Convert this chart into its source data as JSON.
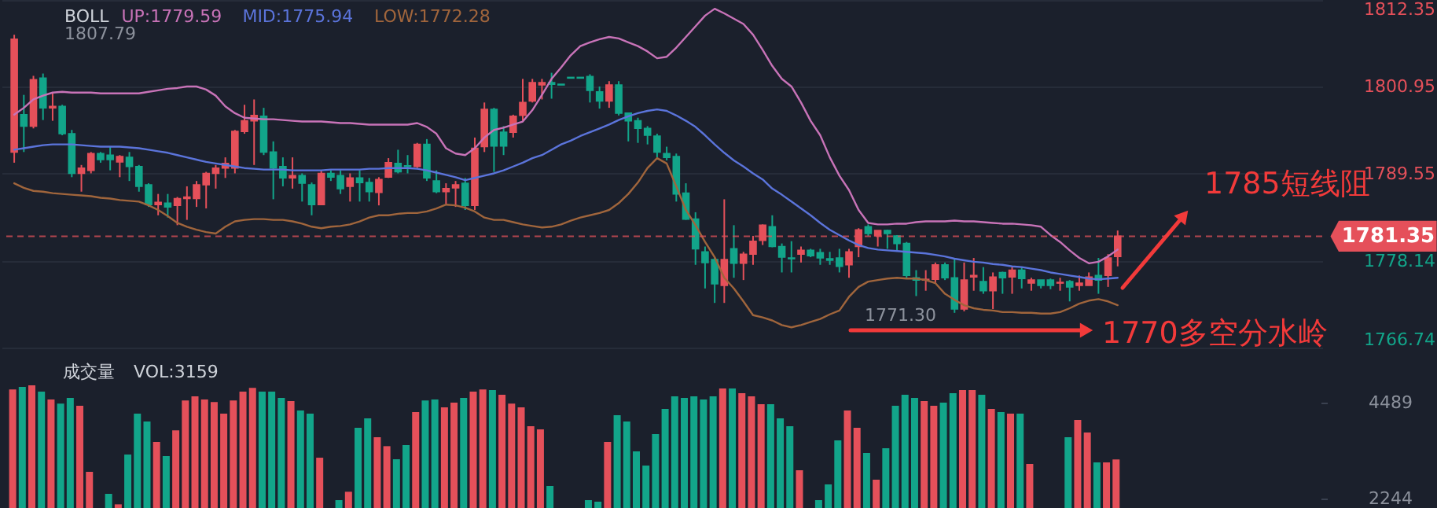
{
  "chart_data": [
    {
      "type": "candlestick",
      "title": "BOLL",
      "categories": [
        null,
        null,
        null,
        null,
        null,
        null,
        null,
        null,
        null,
        null,
        null,
        null,
        null,
        null,
        null,
        null,
        null,
        null,
        null,
        null,
        null,
        null,
        null,
        null,
        null,
        null,
        null,
        null,
        null,
        null,
        null,
        null,
        null,
        null,
        null,
        null,
        null,
        null,
        null,
        null,
        null,
        null,
        null,
        null,
        null,
        null,
        null,
        null,
        null,
        null,
        null,
        null,
        null,
        null,
        null,
        null,
        null,
        null,
        null,
        null,
        null,
        null,
        null,
        null,
        null,
        null,
        null,
        null,
        null,
        null,
        null,
        null,
        null,
        null,
        null,
        null,
        null,
        null,
        null,
        null,
        null,
        null,
        null,
        null,
        null,
        null,
        null,
        null,
        null,
        null,
        null,
        null,
        null,
        null,
        null,
        null,
        null,
        null,
        null,
        null,
        null,
        null,
        null,
        null,
        null,
        null,
        null,
        null,
        null,
        null,
        null,
        null,
        null,
        null,
        null,
        null,
        null,
        null,
        null,
        null,
        null,
        null,
        null,
        null,
        null,
        null,
        null,
        null,
        null,
        null,
        null,
        null,
        null,
        null,
        null,
        null
      ],
      "ohlc": [
        [
          1792.4,
          1807.79,
          1791.0,
          1807.2
        ],
        [
          1797.3,
          1799.9,
          1792.4,
          1795.8
        ],
        [
          1795.8,
          1802.4,
          1795.5,
          1801.9
        ],
        [
          1802.1,
          1802.7,
          1796.6,
          1798.2
        ],
        [
          1798.2,
          1800.1,
          1796.5,
          1798.4
        ],
        [
          1798.4,
          1798.6,
          1794.6,
          1794.8
        ],
        [
          1794.8,
          1795.3,
          1789.1,
          1789.6
        ],
        [
          1789.6,
          1790.7,
          1787.2,
          1790.3
        ],
        [
          1790.0,
          1792.4,
          1789.6,
          1792.2
        ],
        [
          1792.2,
          1792.4,
          1791.0,
          1791.4
        ],
        [
          1792.0,
          1793.1,
          1790.0,
          1791.4
        ],
        [
          1791.1,
          1792.0,
          1789.1,
          1791.8
        ],
        [
          1791.7,
          1792.4,
          1788.6,
          1790.5
        ],
        [
          1790.5,
          1790.7,
          1787.2,
          1787.9
        ],
        [
          1788.1,
          1788.3,
          1785.2,
          1785.5
        ],
        [
          1785.5,
          1786.9,
          1784.1,
          1785.8
        ],
        [
          1785.7,
          1786.9,
          1783.8,
          1785.2
        ],
        [
          1785.4,
          1786.5,
          1782.8,
          1786.3
        ],
        [
          1786.3,
          1787.9,
          1783.5,
          1786.5
        ],
        [
          1786.3,
          1788.6,
          1785.2,
          1788.1
        ],
        [
          1788.1,
          1789.8,
          1785.0,
          1789.6
        ],
        [
          1789.6,
          1790.7,
          1787.6,
          1790.3
        ],
        [
          1790.3,
          1791.7,
          1789.0,
          1790.9
        ],
        [
          1790.3,
          1795.3,
          1789.6,
          1795.1
        ],
        [
          1795.1,
          1798.6,
          1794.8,
          1796.5
        ],
        [
          1796.5,
          1799.3,
          1790.7,
          1797.2
        ],
        [
          1797.1,
          1798.2,
          1792.0,
          1792.4
        ],
        [
          1792.4,
          1793.8,
          1786.2,
          1790.3
        ],
        [
          1790.5,
          1791.7,
          1787.9,
          1789.0
        ],
        [
          1789.0,
          1791.7,
          1787.6,
          1789.3
        ],
        [
          1789.3,
          1789.6,
          1785.9,
          1788.3
        ],
        [
          1788.1,
          1788.4,
          1784.1,
          1785.5
        ],
        [
          1785.5,
          1790.0,
          1785.5,
          1789.6
        ],
        [
          1789.6,
          1790.0,
          1788.6,
          1789.1
        ],
        [
          1789.3,
          1790.0,
          1786.9,
          1787.6
        ],
        [
          1787.9,
          1789.6,
          1785.9,
          1789.0
        ],
        [
          1789.0,
          1790.0,
          1785.9,
          1788.4
        ],
        [
          1788.4,
          1789.0,
          1785.9,
          1787.2
        ],
        [
          1787.1,
          1789.1,
          1785.4,
          1788.8
        ],
        [
          1789.1,
          1791.6,
          1789.0,
          1791.0
        ],
        [
          1790.9,
          1792.7,
          1789.6,
          1789.8
        ],
        [
          1790.6,
          1792.0,
          1789.6,
          1790.5
        ],
        [
          1790.5,
          1793.6,
          1790.3,
          1793.4
        ],
        [
          1793.4,
          1794.1,
          1788.6,
          1789.0
        ],
        [
          1788.6,
          1790.0,
          1787.0,
          1787.2
        ],
        [
          1787.2,
          1788.3,
          1785.6,
          1787.6
        ],
        [
          1787.7,
          1788.6,
          1785.2,
          1788.1
        ],
        [
          1788.3,
          1789.0,
          1784.8,
          1785.4
        ],
        [
          1785.4,
          1794.3,
          1784.8,
          1792.9
        ],
        [
          1793.1,
          1798.9,
          1792.4,
          1798.0
        ],
        [
          1798.0,
          1798.2,
          1789.8,
          1793.2
        ],
        [
          1795.0,
          1795.8,
          1792.0,
          1793.2
        ],
        [
          1795.0,
          1797.3,
          1794.3,
          1797.1
        ],
        [
          1797.2,
          1802.0,
          1796.5,
          1798.9
        ],
        [
          1799.1,
          1802.0,
          1798.9,
          1801.5
        ],
        [
          1801.2,
          1802.0,
          1799.3,
          1801.5
        ],
        [
          1801.5,
          1802.8,
          1799.4,
          1801.3
        ],
        [
          1801.3,
          1801.3,
          1801.2,
          1801.2
        ],
        [
          1802.2,
          1802.2,
          1802.1,
          1802.1
        ],
        [
          1802.2,
          1802.2,
          1802.1,
          1802.1
        ],
        [
          1802.3,
          1802.6,
          1798.9,
          1800.5
        ],
        [
          1800.3,
          1801.0,
          1798.1,
          1799.1
        ],
        [
          1799.1,
          1801.7,
          1798.2,
          1801.2
        ],
        [
          1801.2,
          1801.7,
          1797.2,
          1797.5
        ],
        [
          1797.5,
          1797.5,
          1793.8,
          1796.5
        ],
        [
          1796.5,
          1796.9,
          1793.6,
          1795.5
        ],
        [
          1795.5,
          1795.8,
          1793.4,
          1794.6
        ],
        [
          1794.5,
          1794.8,
          1791.7,
          1792.4
        ],
        [
          1792.2,
          1793.1,
          1791.3,
          1791.7
        ],
        [
          1791.8,
          1792.2,
          1785.9,
          1786.9
        ],
        [
          1787.0,
          1788.3,
          1783.5,
          1783.6
        ],
        [
          1783.6,
          1784.5,
          1777.6,
          1779.7
        ],
        [
          1779.3,
          1780.0,
          1774.5,
          1777.9
        ],
        [
          1778.3,
          1778.6,
          1772.6,
          1775.1
        ],
        [
          1774.9,
          1786.2,
          1772.6,
          1778.3
        ],
        [
          1779.7,
          1782.8,
          1775.9,
          1777.8
        ],
        [
          1777.8,
          1779.3,
          1775.6,
          1779.0
        ],
        [
          1779.0,
          1781.4,
          1777.6,
          1780.7
        ],
        [
          1780.8,
          1782.9,
          1780.2,
          1782.8
        ],
        [
          1782.6,
          1784.1,
          1779.9,
          1780.0
        ],
        [
          1780.0,
          1780.4,
          1776.6,
          1778.6
        ],
        [
          1778.5,
          1780.7,
          1776.6,
          1778.4
        ],
        [
          1779.0,
          1780.0,
          1777.9,
          1779.5
        ],
        [
          1779.5,
          1779.7,
          1778.6,
          1778.8
        ],
        [
          1779.2,
          1779.7,
          1777.6,
          1778.5
        ],
        [
          1778.4,
          1779.3,
          1777.6,
          1778.2
        ],
        [
          1778.5,
          1779.7,
          1776.6,
          1777.4
        ],
        [
          1777.6,
          1779.7,
          1775.9,
          1779.3
        ],
        [
          1780.0,
          1782.4,
          1778.6,
          1782.2
        ],
        [
          1782.6,
          1782.9,
          1781.4,
          1781.7
        ],
        [
          1781.4,
          1782.1,
          1780.0,
          1782.1
        ],
        [
          1782.1,
          1782.2,
          1779.7,
          1781.7
        ],
        [
          1781.4,
          1781.5,
          1779.5,
          1780.4
        ],
        [
          1780.4,
          1780.6,
          1775.9,
          1776.2
        ],
        [
          1775.9,
          1776.9,
          1773.5,
          1775.6
        ],
        [
          1775.6,
          1776.9,
          1774.2,
          1775.7
        ],
        [
          1775.7,
          1777.9,
          1775.2,
          1777.6
        ],
        [
          1777.6,
          1777.9,
          1775.6,
          1775.9
        ],
        [
          1775.9,
          1778.3,
          1771.3,
          1771.8
        ],
        [
          1771.8,
          1777.9,
          1771.5,
          1775.6
        ],
        [
          1776.0,
          1778.5,
          1774.2,
          1776.2
        ],
        [
          1775.4,
          1777.3,
          1773.8,
          1774.2
        ],
        [
          1774.2,
          1776.6,
          1771.8,
          1776.0
        ],
        [
          1776.6,
          1776.7,
          1773.8,
          1775.9
        ],
        [
          1776.0,
          1777.3,
          1773.8,
          1776.9
        ],
        [
          1776.9,
          1777.3,
          1774.5,
          1775.8
        ],
        [
          1775.2,
          1775.9,
          1774.2,
          1775.6
        ],
        [
          1775.6,
          1775.6,
          1774.5,
          1774.9
        ],
        [
          1775.6,
          1775.8,
          1774.4,
          1774.9
        ],
        [
          1775.2,
          1775.9,
          1774.2,
          1775.3
        ],
        [
          1775.4,
          1775.6,
          1772.8,
          1774.7
        ],
        [
          1774.9,
          1776.2,
          1774.2,
          1775.2
        ],
        [
          1774.9,
          1776.6,
          1774.9,
          1776.0
        ],
        [
          1776.2,
          1778.5,
          1773.8,
          1775.6
        ],
        [
          1776.2,
          1779.0,
          1774.7,
          1778.5
        ],
        [
          1778.7,
          1782.1,
          1777.4,
          1781.35
        ],
        null,
        null,
        null,
        null,
        null,
        null,
        null,
        null,
        null,
        null,
        null,
        null,
        null,
        null,
        null,
        null,
        null,
        null,
        null,
        null
      ],
      "colors": [
        "#e5505a",
        "#12a58a",
        "#e5505a",
        "#12a58a",
        "#e5505a",
        "#12a58a",
        "#12a58a",
        "#e5505a",
        "#e5505a",
        "#12a58a",
        "#12a58a",
        "#e5505a",
        "#12a58a",
        "#12a58a",
        "#12a58a",
        "#e5505a",
        "#12a58a",
        "#e5505a",
        "#e5505a",
        "#e5505a",
        "#e5505a",
        "#e5505a",
        "#e5505a",
        "#e5505a",
        "#e5505a",
        "#e5505a",
        "#12a58a",
        "#12a58a",
        "#12a58a",
        "#e5505a",
        "#12a58a",
        "#12a58a",
        "#e5505a",
        "#12a58a",
        "#12a58a",
        "#e5505a",
        "#12a58a",
        "#12a58a",
        "#e5505a",
        "#e5505a",
        "#12a58a",
        "#12a58a",
        "#e5505a",
        "#12a58a",
        "#12a58a",
        "#e5505a",
        "#e5505a",
        "#12a58a",
        "#e5505a",
        "#e5505a",
        "#12a58a",
        "#12a58a",
        "#e5505a",
        "#e5505a",
        "#e5505a",
        "#e5505a",
        "#12a58a",
        "#12a58a",
        "#12a58a",
        "#12a58a",
        "#12a58a",
        "#12a58a",
        "#e5505a",
        "#12a58a",
        "#12a58a",
        "#12a58a",
        "#12a58a",
        "#12a58a",
        "#12a58a",
        "#12a58a",
        "#12a58a",
        "#12a58a",
        "#12a58a",
        "#12a58a",
        "#e5505a",
        "#12a58a",
        "#e5505a",
        "#e5505a",
        "#e5505a",
        "#12a58a",
        "#12a58a",
        "#12a58a",
        "#e5505a",
        "#12a58a",
        "#12a58a",
        "#12a58a",
        "#12a58a",
        "#e5505a",
        "#e5505a",
        "#12a58a",
        "#e5505a",
        "#12a58a",
        "#12a58a",
        "#12a58a",
        "#12a58a",
        "#e5505a",
        "#e5505a",
        "#12a58a",
        "#12a58a",
        "#e5505a",
        "#e5505a",
        "#12a58a",
        "#e5505a",
        "#12a58a",
        "#e5505a",
        "#12a58a",
        "#e5505a",
        "#12a58a",
        "#12a58a",
        "#e5505a",
        "#12a58a",
        "#e5505a",
        "#e5505a",
        "#12a58a",
        "#e5505a",
        "#e5505a",
        null,
        null,
        null,
        null,
        null,
        null,
        null,
        null,
        null,
        null,
        null,
        null,
        null,
        null,
        null,
        null,
        null,
        null,
        null,
        null
      ],
      "series": [
        {
          "name": "UP:1779.59",
          "type": "line",
          "color": "#c873b8",
          "values": [
            1797.3,
            1798.2,
            1799.3,
            1799.8,
            1800.2,
            1800.3,
            1800.2,
            1800.2,
            1800.2,
            1800.1,
            1800.1,
            1800.1,
            1800.1,
            1800.1,
            1800.3,
            1800.5,
            1800.7,
            1800.8,
            1801.0,
            1801.0,
            1800.6,
            1799.8,
            1798.4,
            1797.5,
            1796.9,
            1796.8,
            1796.7,
            1796.7,
            1796.6,
            1796.5,
            1796.4,
            1796.4,
            1796.4,
            1796.3,
            1796.2,
            1796.2,
            1796.1,
            1796.0,
            1796.0,
            1796.0,
            1796.0,
            1796.0,
            1796.2,
            1795.7,
            1794.8,
            1792.9,
            1792.2,
            1792.0,
            1792.9,
            1794.3,
            1795.3,
            1795.6,
            1796.0,
            1796.4,
            1797.9,
            1799.9,
            1802.0,
            1803.5,
            1805.1,
            1806.3,
            1806.8,
            1807.2,
            1807.5,
            1807.3,
            1806.8,
            1806.3,
            1805.6,
            1804.7,
            1804.9,
            1806.1,
            1807.5,
            1808.9,
            1810.3,
            1811.2,
            1810.6,
            1809.9,
            1809.2,
            1807.8,
            1805.8,
            1803.7,
            1802.0,
            1801.0,
            1798.9,
            1796.5,
            1794.6,
            1791.7,
            1789.3,
            1787.4,
            1784.8,
            1783.1,
            1782.9,
            1782.9,
            1783.0,
            1783.0,
            1783.2,
            1783.3,
            1783.3,
            1783.3,
            1783.4,
            1783.3,
            1783.3,
            1783.2,
            1783.1,
            1783.0,
            1783.0,
            1782.9,
            1782.8,
            1782.6,
            1781.5,
            1780.6,
            1779.5,
            1778.5,
            1777.8,
            1778.0,
            1778.7,
            1779.6,
            null,
            null,
            null,
            null,
            null,
            null,
            null,
            null,
            null,
            null,
            null,
            null,
            null,
            null,
            null,
            null,
            null,
            null,
            null,
            null
          ]
        },
        {
          "name": "MID:1775.94",
          "type": "line",
          "color": "#5b74db",
          "values": [
            1792.7,
            1792.9,
            1793.1,
            1793.3,
            1793.4,
            1793.4,
            1793.4,
            1793.3,
            1793.2,
            1793.1,
            1793.1,
            1793.1,
            1793.0,
            1792.9,
            1792.7,
            1792.5,
            1792.3,
            1792.0,
            1791.7,
            1791.4,
            1791.1,
            1790.9,
            1790.7,
            1790.5,
            1790.3,
            1790.2,
            1790.1,
            1790.1,
            1790.1,
            1790.0,
            1790.0,
            1790.0,
            1790.0,
            1790.1,
            1790.1,
            1790.1,
            1790.1,
            1790.2,
            1790.2,
            1790.3,
            1790.3,
            1790.3,
            1790.2,
            1790.0,
            1789.7,
            1789.4,
            1789.1,
            1788.7,
            1789.0,
            1789.3,
            1789.6,
            1790.0,
            1790.5,
            1791.0,
            1791.6,
            1792.0,
            1792.7,
            1793.4,
            1793.9,
            1794.5,
            1795.0,
            1795.5,
            1796.0,
            1796.6,
            1797.1,
            1797.5,
            1797.8,
            1798.0,
            1797.8,
            1797.2,
            1796.5,
            1795.7,
            1794.6,
            1793.4,
            1792.3,
            1791.3,
            1790.5,
            1789.6,
            1788.8,
            1787.6,
            1786.8,
            1785.9,
            1785.0,
            1784.1,
            1783.1,
            1782.2,
            1781.5,
            1780.8,
            1780.2,
            1779.8,
            1779.6,
            1779.5,
            1779.4,
            1779.3,
            1779.2,
            1779.1,
            1778.9,
            1778.7,
            1778.4,
            1778.2,
            1778.0,
            1777.9,
            1777.7,
            1777.6,
            1777.4,
            1777.3,
            1777.1,
            1776.9,
            1776.6,
            1776.4,
            1776.2,
            1776.0,
            1775.8,
            1775.7,
            1775.8,
            1775.9,
            null,
            null,
            null,
            null,
            null,
            null,
            null,
            null,
            null,
            null,
            null,
            null,
            null,
            null,
            null,
            null,
            null,
            null,
            null,
            null
          ]
        },
        {
          "name": "LOW:1772.28",
          "type": "line",
          "color": "#a0653c",
          "values": [
            1788.3,
            1787.7,
            1787.3,
            1787.2,
            1787.0,
            1786.9,
            1786.8,
            1786.7,
            1786.6,
            1786.4,
            1786.3,
            1786.1,
            1786.0,
            1785.9,
            1785.4,
            1784.8,
            1784.0,
            1783.1,
            1782.6,
            1782.2,
            1781.9,
            1781.7,
            1782.6,
            1783.3,
            1783.5,
            1783.6,
            1783.6,
            1783.5,
            1783.5,
            1783.3,
            1783.0,
            1782.6,
            1782.4,
            1782.6,
            1782.7,
            1782.9,
            1783.3,
            1783.8,
            1784.1,
            1784.1,
            1784.3,
            1784.4,
            1784.4,
            1784.6,
            1785.0,
            1785.5,
            1785.4,
            1785.1,
            1784.6,
            1783.8,
            1783.5,
            1783.5,
            1783.2,
            1782.9,
            1782.7,
            1782.5,
            1782.6,
            1782.9,
            1783.4,
            1783.8,
            1784.1,
            1784.4,
            1784.8,
            1785.7,
            1786.9,
            1788.4,
            1790.3,
            1791.6,
            1790.9,
            1787.9,
            1784.8,
            1782.8,
            1780.6,
            1778.6,
            1775.9,
            1774.5,
            1772.8,
            1771.0,
            1770.7,
            1770.3,
            1769.7,
            1769.4,
            1769.7,
            1770.1,
            1770.5,
            1771.1,
            1771.6,
            1773.4,
            1774.7,
            1775.4,
            1775.6,
            1775.8,
            1775.9,
            1775.8,
            1775.8,
            1775.6,
            1775.2,
            1773.8,
            1773.0,
            1772.3,
            1771.9,
            1771.7,
            1771.6,
            1771.4,
            1771.4,
            1771.3,
            1771.3,
            1771.2,
            1771.2,
            1771.4,
            1771.9,
            1772.5,
            1772.9,
            1773.1,
            1772.8,
            1772.3,
            null,
            null,
            null,
            null,
            null,
            null,
            null,
            null,
            null,
            null,
            null,
            null,
            null,
            null,
            null,
            null,
            null,
            null,
            null,
            null
          ]
        }
      ],
      "ylim": [
        1766.74,
        1812.35
      ],
      "yticks": [
        1766.74,
        1778.14,
        1789.55,
        1800.95,
        1812.35
      ],
      "grid": "y",
      "ref_lines": [
        {
          "axis": "y",
          "value": 1781.35,
          "label": "1781.35",
          "color": "#e5505a",
          "line_style": "dashed"
        }
      ],
      "annotations": [
        "1807.79",
        "1771.30",
        "1785短线阻",
        "1770多空分水岭"
      ]
    },
    {
      "type": "bar",
      "title": "成交量",
      "categories": [
        null,
        null,
        null,
        null,
        null,
        null,
        null,
        null,
        null,
        null,
        null,
        null,
        null,
        null,
        null,
        null,
        null,
        null,
        null,
        null,
        null,
        null,
        null,
        null,
        null,
        null,
        null,
        null,
        null,
        null,
        null,
        null,
        null,
        null,
        null,
        null,
        null,
        null,
        null,
        null,
        null,
        null,
        null,
        null,
        null,
        null,
        null,
        null,
        null,
        null,
        null,
        null,
        null,
        null,
        null,
        null,
        null,
        null,
        null,
        null,
        null,
        null,
        null,
        null,
        null,
        null,
        null,
        null,
        null,
        null,
        null,
        null,
        null,
        null,
        null,
        null,
        null,
        null,
        null,
        null,
        null,
        null,
        null,
        null,
        null,
        null,
        null,
        null,
        null,
        null,
        null,
        null,
        null,
        null,
        null,
        null,
        null,
        null,
        null,
        null,
        null,
        null,
        null,
        null,
        null,
        null,
        null,
        null,
        null,
        null,
        null,
        null,
        null,
        null,
        null,
        null,
        null,
        null,
        null,
        null,
        null,
        null,
        null,
        null,
        null,
        null,
        null,
        null,
        null,
        null,
        null,
        null,
        null,
        null,
        null,
        null
      ],
      "series": [
        {
          "name": "VOL:3159",
          "values": [
            4795,
            4857,
            4894,
            4746,
            4562,
            4464,
            4599,
            4415,
            2869,
            null,
            2354,
            2108,
            3274,
            4231,
            4047,
            3568,
            3237,
            3838,
            4538,
            4636,
            4562,
            4501,
            4231,
            4538,
            4746,
            4832,
            4746,
            4746,
            4599,
            4526,
            4305,
            4231,
            3200,
            null,
            2207,
            2403,
            3900,
            4121,
            3679,
            3470,
            3164,
            3495,
            4268,
            4538,
            4562,
            4378,
            4489,
            4599,
            4746,
            4795,
            4783,
            4673,
            4464,
            4378,
            3936,
            3863,
            2538,
            null,
            null,
            null,
            2207,
            2171,
            3568,
            4194,
            4047,
            3348,
            3016,
            3752,
            4341,
            4636,
            4599,
            4636,
            4562,
            4636,
            4820,
            4820,
            4710,
            4636,
            4452,
            4452,
            4121,
            3936,
            2906,
            null,
            2207,
            2575,
            3605,
            4305,
            3900,
            3311,
            2685,
            3421,
            4415,
            4673,
            4599,
            4526,
            4415,
            4489,
            4710,
            4783,
            4783,
            4673,
            4341,
            4268,
            4231,
            4231,
            3053,
            null,
            null,
            null,
            3679,
            4084,
            3789,
            3090,
            3090,
            3159,
            null,
            null,
            null,
            null,
            null,
            null,
            null,
            null,
            null,
            null,
            null,
            null,
            null,
            null,
            null,
            null,
            null,
            null,
            null,
            null
          ],
          "colors": [
            "#e5505a",
            "#12a58a",
            "#e5505a",
            "#12a58a",
            "#e5505a",
            "#12a58a",
            "#12a58a",
            "#e5505a",
            "#e5505a",
            "#12a58a",
            "#12a58a",
            "#e5505a",
            "#12a58a",
            "#12a58a",
            "#12a58a",
            "#e5505a",
            "#12a58a",
            "#e5505a",
            "#e5505a",
            "#e5505a",
            "#e5505a",
            "#e5505a",
            "#e5505a",
            "#e5505a",
            "#e5505a",
            "#e5505a",
            "#12a58a",
            "#12a58a",
            "#12a58a",
            "#e5505a",
            "#12a58a",
            "#12a58a",
            "#e5505a",
            "#12a58a",
            "#12a58a",
            "#e5505a",
            "#12a58a",
            "#12a58a",
            "#e5505a",
            "#e5505a",
            "#12a58a",
            "#12a58a",
            "#e5505a",
            "#12a58a",
            "#12a58a",
            "#e5505a",
            "#e5505a",
            "#12a58a",
            "#e5505a",
            "#e5505a",
            "#12a58a",
            "#e5505a",
            "#e5505a",
            "#e5505a",
            "#e5505a",
            "#e5505a",
            "#12a58a",
            "#12a58a",
            "#12a58a",
            "#12a58a",
            "#12a58a",
            "#12a58a",
            "#e5505a",
            "#12a58a",
            "#12a58a",
            "#12a58a",
            "#12a58a",
            "#12a58a",
            "#12a58a",
            "#12a58a",
            "#12a58a",
            "#12a58a",
            "#12a58a",
            "#12a58a",
            "#e5505a",
            "#12a58a",
            "#e5505a",
            "#e5505a",
            "#e5505a",
            "#12a58a",
            "#12a58a",
            "#12a58a",
            "#e5505a",
            "#12a58a",
            "#12a58a",
            "#12a58a",
            "#12a58a",
            "#e5505a",
            "#e5505a",
            "#12a58a",
            "#e5505a",
            "#12a58a",
            "#12a58a",
            "#12a58a",
            "#12a58a",
            "#e5505a",
            "#e5505a",
            "#12a58a",
            "#12a58a",
            "#e5505a",
            "#e5505a",
            "#12a58a",
            "#e5505a",
            "#12a58a",
            "#e5505a",
            "#12a58a",
            "#e5505a",
            "#12a58a",
            "#12a58a",
            "#e5505a",
            "#12a58a",
            "#e5505a",
            "#e5505a",
            "#12a58a",
            "#e5505a",
            "#e5505a",
            null,
            null,
            null,
            null,
            null,
            null,
            null,
            null,
            null,
            null,
            null,
            null,
            null,
            null,
            null,
            null,
            null,
            null,
            null,
            null
          ]
        }
      ],
      "ylim": [
        1986,
        5593
      ],
      "yticks": [
        2244,
        4489
      ]
    }
  ]
}
